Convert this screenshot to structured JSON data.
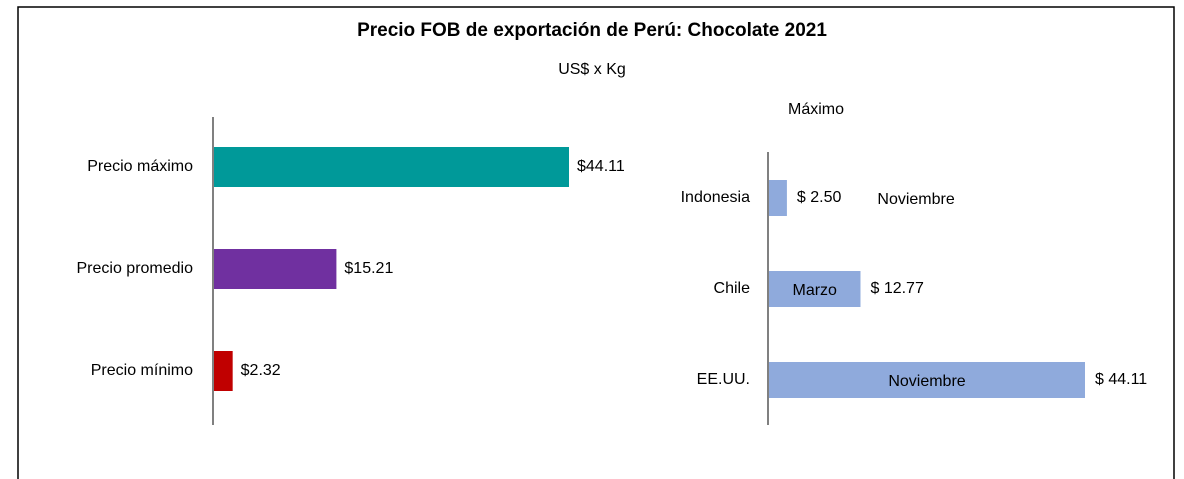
{
  "title": "Precio FOB de exportación de Perú: Chocolate 2021",
  "subtitle": "US$ x Kg",
  "chart_data": [
    {
      "type": "bar",
      "orientation": "horizontal",
      "categories": [
        "Precio máximo",
        "Precio promedio",
        "Precio mínimo"
      ],
      "values": [
        44.11,
        15.21,
        2.32
      ],
      "value_labels": [
        "$44.11",
        "$15.21",
        "$2.32"
      ],
      "colors": [
        "#009999",
        "#7030a0",
        "#c00000"
      ]
    },
    {
      "type": "bar",
      "orientation": "horizontal",
      "title": "Máximo",
      "categories": [
        "Indonesia",
        "Chile",
        "EE.UU."
      ],
      "values": [
        2.5,
        12.77,
        44.11
      ],
      "value_labels": [
        "$ 2.50",
        "$ 12.77",
        "$ 44.11"
      ],
      "annotations": [
        "Noviembre",
        "Marzo",
        "Noviembre"
      ],
      "color": "#8faadc"
    }
  ]
}
